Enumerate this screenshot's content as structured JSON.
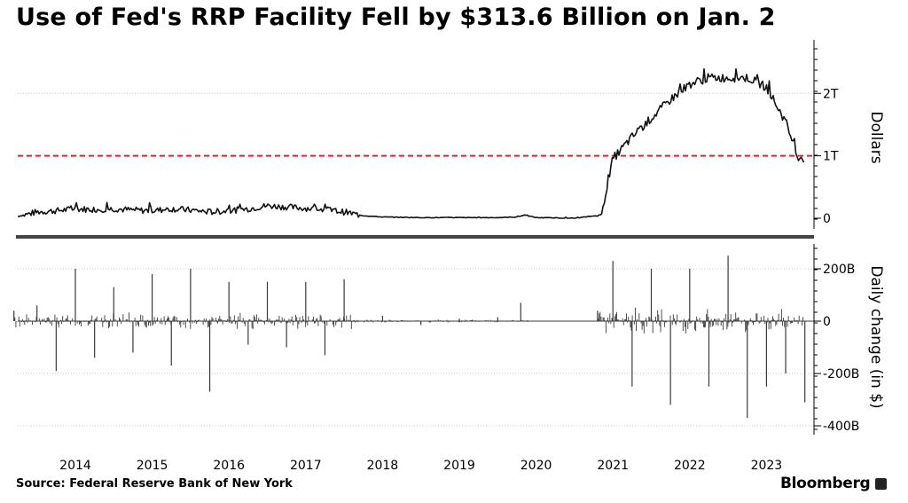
{
  "title": "Use of Fed's RRP Facility Fell by $313.6 Billion on Jan. 2",
  "source": "Source: Federal Reserve Bank of New York",
  "brand": "Bloomberg",
  "colors": {
    "line": "#111111",
    "bars": "#3a3a3a",
    "threshold": "#d9263a",
    "grid": "#c8c8c8",
    "divider": "#444444"
  },
  "chart_data": [
    {
      "type": "line",
      "panel": "top",
      "xlabel": "",
      "ylabel": "Dollars",
      "ylim": [
        0,
        2.7
      ],
      "y_ticks": [
        {
          "value": 0,
          "label": "0"
        },
        {
          "value": 1,
          "label": "1T"
        },
        {
          "value": 2,
          "label": "2T"
        }
      ],
      "threshold": 1,
      "x_ticks": [
        "2014",
        "2015",
        "2016",
        "2017",
        "2018",
        "2019",
        "2020",
        "2021",
        "2022",
        "2023"
      ],
      "series": [
        {
          "x": [
            2013.25,
            2013.5,
            2013.75,
            2014.0,
            2014.25,
            2014.5,
            2014.75,
            2015.0,
            2015.25,
            2015.5,
            2015.75,
            2016.0,
            2016.25,
            2016.5,
            2016.75,
            2017.0,
            2017.25,
            2017.5,
            2017.75,
            2018.0,
            2018.5,
            2019.0,
            2019.5,
            2019.75,
            2019.85,
            2020.0,
            2020.5,
            2020.85,
            2021.0,
            2021.25,
            2021.5,
            2021.75,
            2022.0,
            2022.25,
            2022.5,
            2022.75,
            2023.0,
            2023.25,
            2023.4,
            2023.5
          ],
          "y": [
            0.03,
            0.1,
            0.12,
            0.15,
            0.14,
            0.15,
            0.13,
            0.12,
            0.15,
            0.13,
            0.1,
            0.12,
            0.15,
            0.2,
            0.18,
            0.16,
            0.14,
            0.1,
            0.04,
            0.02,
            0.01,
            0.01,
            0.01,
            0.02,
            0.05,
            0.01,
            0.0,
            0.05,
            0.95,
            1.3,
            1.6,
            1.9,
            2.15,
            2.25,
            2.25,
            2.25,
            2.1,
            1.55,
            1.0,
            0.95
          ]
        }
      ]
    },
    {
      "type": "bar",
      "panel": "bottom",
      "xlabel": "",
      "ylabel": "Daily change (in $)",
      "ylim": [
        -420,
        250
      ],
      "y_ticks": [
        {
          "value": 200,
          "label": "200B"
        },
        {
          "value": 0,
          "label": "0"
        },
        {
          "value": -200,
          "label": "-200B"
        },
        {
          "value": -400,
          "label": "-400B"
        }
      ],
      "series": [
        {
          "x": [
            2013.2,
            2013.5,
            2013.75,
            2014.0,
            2014.25,
            2014.5,
            2014.75,
            2015.0,
            2015.25,
            2015.5,
            2015.75,
            2016.0,
            2016.25,
            2016.5,
            2016.75,
            2017.0,
            2017.25,
            2017.5,
            2018.0,
            2018.5,
            2019.0,
            2019.5,
            2019.8,
            2020.8,
            2021.0,
            2021.25,
            2021.5,
            2021.75,
            2022.0,
            2022.25,
            2022.5,
            2022.75,
            2023.0,
            2023.25,
            2023.5
          ],
          "y": [
            40,
            60,
            -190,
            200,
            -140,
            130,
            -120,
            180,
            -170,
            200,
            -270,
            150,
            -90,
            150,
            -100,
            150,
            -130,
            160,
            20,
            -15,
            10,
            15,
            70,
            40,
            230,
            -250,
            200,
            -320,
            200,
            -250,
            250,
            -370,
            -250,
            -200,
            -310
          ]
        }
      ]
    }
  ]
}
